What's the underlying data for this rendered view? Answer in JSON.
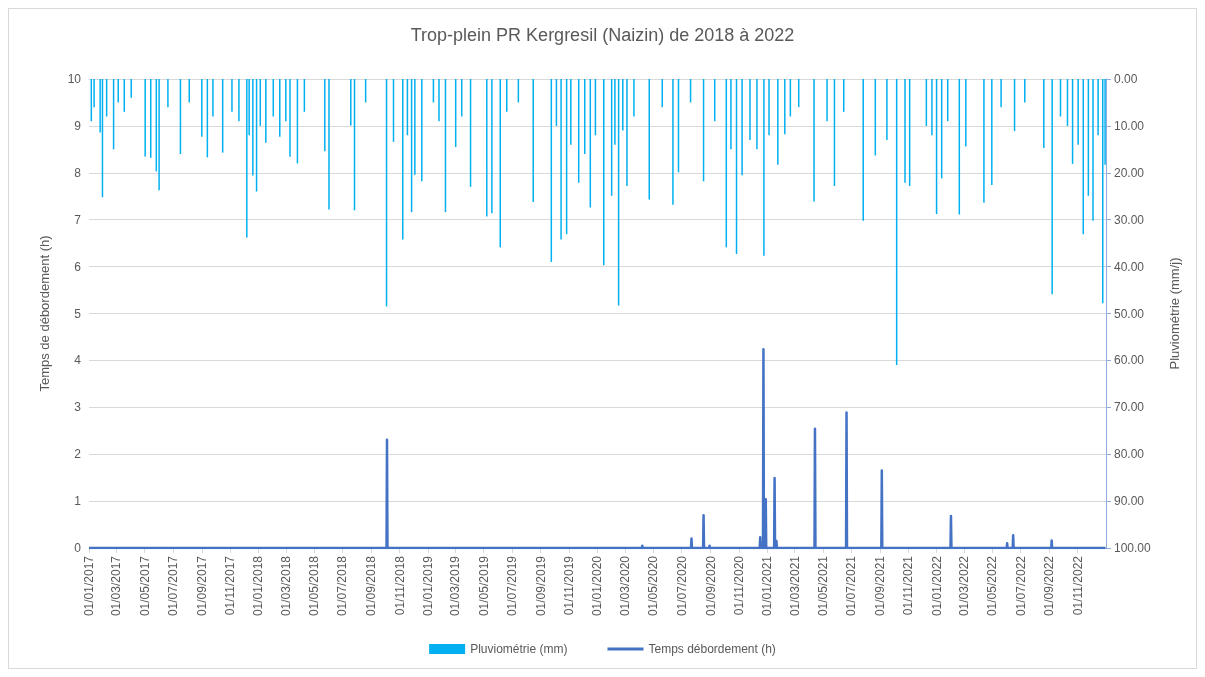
{
  "chart_data": {
    "type": "bar",
    "title": "Trop-plein PR Kergresil (Naizin) de 2018 à 2022",
    "ylabel": "Temps de débordement (h)",
    "y2label": "Pluviométrie (mm/j)",
    "xlim": [
      "2017-01-01",
      "2023-01-01"
    ],
    "xticks": [
      {
        "value": "2017-01-01",
        "label": "01/01/2017"
      },
      {
        "value": "2017-03-01",
        "label": "01/03/2017"
      },
      {
        "value": "2017-05-01",
        "label": "01/05/2017"
      },
      {
        "value": "2017-07-01",
        "label": "01/07/2017"
      },
      {
        "value": "2017-09-01",
        "label": "01/09/2017"
      },
      {
        "value": "2017-11-01",
        "label": "01/11/2017"
      },
      {
        "value": "2018-01-01",
        "label": "01/01/2018"
      },
      {
        "value": "2018-03-01",
        "label": "01/03/2018"
      },
      {
        "value": "2018-05-01",
        "label": "01/05/2018"
      },
      {
        "value": "2018-07-01",
        "label": "01/07/2018"
      },
      {
        "value": "2018-09-01",
        "label": "01/09/2018"
      },
      {
        "value": "2018-11-01",
        "label": "01/11/2018"
      },
      {
        "value": "2019-01-01",
        "label": "01/01/2019"
      },
      {
        "value": "2019-03-01",
        "label": "01/03/2019"
      },
      {
        "value": "2019-05-01",
        "label": "01/05/2019"
      },
      {
        "value": "2019-07-01",
        "label": "01/07/2019"
      },
      {
        "value": "2019-09-01",
        "label": "01/09/2019"
      },
      {
        "value": "2019-11-01",
        "label": "01/11/2019"
      },
      {
        "value": "2020-01-01",
        "label": "01/01/2020"
      },
      {
        "value": "2020-03-01",
        "label": "01/03/2020"
      },
      {
        "value": "2020-05-01",
        "label": "01/05/2020"
      },
      {
        "value": "2020-07-01",
        "label": "01/07/2020"
      },
      {
        "value": "2020-09-01",
        "label": "01/09/2020"
      },
      {
        "value": "2020-11-01",
        "label": "01/11/2020"
      },
      {
        "value": "2021-01-01",
        "label": "01/01/2021"
      },
      {
        "value": "2021-03-01",
        "label": "01/03/2021"
      },
      {
        "value": "2021-05-01",
        "label": "01/05/2021"
      },
      {
        "value": "2021-07-01",
        "label": "01/07/2021"
      },
      {
        "value": "2021-09-01",
        "label": "01/09/2021"
      },
      {
        "value": "2021-11-01",
        "label": "01/11/2021"
      },
      {
        "value": "2022-01-01",
        "label": "01/01/2022"
      },
      {
        "value": "2022-03-01",
        "label": "01/03/2022"
      },
      {
        "value": "2022-05-01",
        "label": "01/05/2022"
      },
      {
        "value": "2022-07-01",
        "label": "01/07/2022"
      },
      {
        "value": "2022-09-01",
        "label": "01/09/2022"
      },
      {
        "value": "2022-11-01",
        "label": "01/11/2022"
      }
    ],
    "ylim": [
      0,
      10
    ],
    "yticks": [
      0,
      1,
      2,
      3,
      4,
      5,
      6,
      7,
      8,
      9,
      10
    ],
    "y2lim": [
      100,
      0
    ],
    "y2ticks": [
      {
        "value": 0,
        "label": "0.00"
      },
      {
        "value": 10,
        "label": "10.00"
      },
      {
        "value": 20,
        "label": "20.00"
      },
      {
        "value": 30,
        "label": "30.00"
      },
      {
        "value": 40,
        "label": "40.00"
      },
      {
        "value": 50,
        "label": "50.00"
      },
      {
        "value": 60,
        "label": "60.00"
      },
      {
        "value": 70,
        "label": "70.00"
      },
      {
        "value": 80,
        "label": "80.00"
      },
      {
        "value": 90,
        "label": "90.00"
      },
      {
        "value": 100,
        "label": "100.00"
      }
    ],
    "grid": "y",
    "legend": "bottom",
    "marker": "none",
    "line_style": "solid",
    "series": [
      {
        "name": "Pluviométrie (mm)",
        "axis": "y2",
        "color": "#00b0f0",
        "x": [
          "2017-01-06",
          "2017-01-12",
          "2017-01-25",
          "2017-01-30",
          "2017-02-08",
          "2017-02-23",
          "2017-03-05",
          "2017-03-18",
          "2017-04-02",
          "2017-05-02",
          "2017-05-14",
          "2017-05-26",
          "2017-06-01",
          "2017-06-20",
          "2017-07-17",
          "2017-08-05",
          "2017-09-01",
          "2017-09-13",
          "2017-09-25",
          "2017-10-16",
          "2017-11-05",
          "2017-11-20",
          "2017-12-07",
          "2017-12-12",
          "2017-12-20",
          "2017-12-28",
          "2018-01-05",
          "2018-01-17",
          "2018-02-02",
          "2018-02-16",
          "2018-03-01",
          "2018-03-10",
          "2018-03-26",
          "2018-04-10",
          "2018-05-24",
          "2018-06-02",
          "2018-07-19",
          "2018-07-27",
          "2018-08-20",
          "2018-10-04",
          "2018-10-19",
          "2018-11-08",
          "2018-11-18",
          "2018-11-27",
          "2018-12-04",
          "2018-12-19",
          "2019-01-13",
          "2019-01-25",
          "2019-02-08",
          "2019-03-02",
          "2019-03-15",
          "2019-04-03",
          "2019-05-08",
          "2019-05-19",
          "2019-06-06",
          "2019-06-20",
          "2019-07-15",
          "2019-08-16",
          "2019-09-24",
          "2019-10-05",
          "2019-10-15",
          "2019-10-27",
          "2019-11-05",
          "2019-11-22",
          "2019-12-05",
          "2019-12-17",
          "2019-12-28",
          "2020-01-15",
          "2020-02-01",
          "2020-02-08",
          "2020-02-16",
          "2020-02-25",
          "2020-03-05",
          "2020-03-20",
          "2020-04-22",
          "2020-05-20",
          "2020-06-12",
          "2020-06-24",
          "2020-07-20",
          "2020-08-17",
          "2020-09-10",
          "2020-10-05",
          "2020-10-15",
          "2020-10-27",
          "2020-11-08",
          "2020-11-25",
          "2020-12-10",
          "2020-12-25",
          "2021-01-05",
          "2021-01-24",
          "2021-02-08",
          "2021-02-20",
          "2021-03-10",
          "2021-04-12",
          "2021-05-10",
          "2021-05-26",
          "2021-06-15",
          "2021-07-27",
          "2021-08-22",
          "2021-09-16",
          "2021-10-07",
          "2021-10-25",
          "2021-11-04",
          "2021-12-10",
          "2021-12-22",
          "2022-01-01",
          "2022-01-12",
          "2022-01-25",
          "2022-02-19",
          "2022-03-05",
          "2022-04-13",
          "2022-04-30",
          "2022-05-20",
          "2022-06-18",
          "2022-07-10",
          "2022-08-20",
          "2022-09-07",
          "2022-09-25",
          "2022-10-10",
          "2022-10-21",
          "2022-11-02",
          "2022-11-13",
          "2022-11-24",
          "2022-12-04",
          "2022-12-15",
          "2022-12-25",
          "2022-12-30"
        ],
        "values": [
          9,
          6,
          11.4,
          25.2,
          8,
          15,
          5,
          7,
          4,
          16.5,
          16.8,
          19.7,
          23.7,
          6,
          16,
          5,
          12.3,
          16.7,
          8,
          15.7,
          7,
          9,
          33.8,
          12,
          20.6,
          24,
          10,
          13.6,
          8,
          12.3,
          9,
          16.6,
          18,
          7,
          15.4,
          27.8,
          9.9,
          28,
          5,
          48.5,
          13.4,
          34.2,
          12,
          28.4,
          20.4,
          21.8,
          5,
          9,
          28.4,
          14.5,
          8,
          23,
          29.3,
          28.6,
          35.9,
          7,
          5,
          26.2,
          39,
          10,
          34.2,
          33.1,
          14,
          22.1,
          16,
          27.4,
          12,
          39.7,
          24.9,
          14,
          48.3,
          11,
          22.8,
          8,
          25.7,
          6,
          26.8,
          19.9,
          5,
          21.8,
          9,
          35.9,
          15,
          37.3,
          20.5,
          13,
          15,
          37.7,
          12,
          18.3,
          11.8,
          8,
          6,
          26.1,
          9,
          22.8,
          7,
          30.2,
          16.3,
          13,
          61,
          22.1,
          22.8,
          10,
          12,
          28.8,
          21.2,
          9,
          28.9,
          14.4,
          26.4,
          22.6,
          6,
          11.1,
          5,
          14.7,
          45.9,
          8,
          10,
          18.1,
          14,
          33.1,
          24.9,
          30.2,
          12,
          47.8,
          18.3
        ]
      },
      {
        "name": "Temps débordement (h)",
        "type": "line",
        "color": "#4472c4",
        "x": [
          "2017-01-01",
          "2018-10-04",
          "2018-10-05",
          "2018-10-06",
          "2020-04-06",
          "2020-04-07",
          "2020-04-08",
          "2020-07-21",
          "2020-07-22",
          "2020-07-23",
          "2020-08-16",
          "2020-08-17",
          "2020-08-18",
          "2020-08-29",
          "2020-08-30",
          "2020-08-31",
          "2020-12-16",
          "2020-12-17",
          "2020-12-18",
          "2020-12-23",
          "2020-12-24",
          "2020-12-25",
          "2020-12-28",
          "2020-12-29",
          "2020-12-30",
          "2021-01-16",
          "2021-01-17",
          "2021-01-18",
          "2021-01-20",
          "2021-01-21",
          "2021-01-22",
          "2021-04-13",
          "2021-04-14",
          "2021-04-15",
          "2021-06-20",
          "2021-06-21",
          "2021-06-22",
          "2021-09-04",
          "2021-09-05",
          "2021-09-06",
          "2022-01-31",
          "2022-02-01",
          "2022-02-02",
          "2022-06-01",
          "2022-06-02",
          "2022-06-03",
          "2022-06-14",
          "2022-06-15",
          "2022-06-16",
          "2022-09-05",
          "2022-09-06",
          "2022-09-07",
          "2022-12-31"
        ],
        "values": [
          0,
          0,
          2.31,
          0,
          0,
          0.05,
          0,
          0,
          0.2,
          0,
          0,
          0.7,
          0,
          0,
          0.05,
          0,
          0,
          0.23,
          0,
          0,
          4.24,
          0,
          0,
          1.04,
          0,
          0,
          1.49,
          0,
          0,
          0.15,
          0,
          0,
          2.54,
          0,
          0,
          2.89,
          0,
          0,
          1.65,
          0,
          0,
          0.68,
          0,
          0,
          0.1,
          0,
          0,
          0.27,
          0,
          0,
          0.16,
          0,
          0
        ]
      }
    ]
  }
}
